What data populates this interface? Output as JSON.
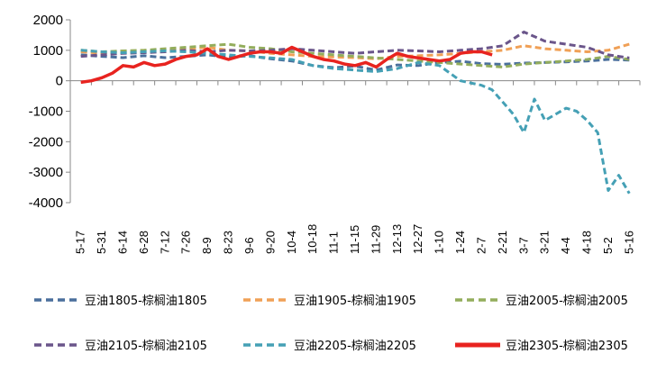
{
  "chart_data": {
    "type": "line",
    "ylim": [
      -4000,
      2000
    ],
    "y_ticks": [
      "2000",
      "1000",
      "0",
      "-1000",
      "-2000",
      "-3000",
      "-4000"
    ],
    "y_tick_values": [
      2000,
      1000,
      0,
      -1000,
      -2000,
      -3000,
      -4000
    ],
    "x_ticks": [
      "5-17",
      "5-31",
      "6-14",
      "6-28",
      "7-12",
      "7-26",
      "8-9",
      "8-23",
      "9-6",
      "9-20",
      "10-4",
      "10-18",
      "11-1",
      "11-15",
      "11-29",
      "12-13",
      "12-27",
      "1-10",
      "1-24",
      "2-7",
      "2-21",
      "3-7",
      "3-21",
      "4-4",
      "4-18",
      "5-2",
      "5-16"
    ],
    "grid": false,
    "legend_position": "bottom",
    "series": [
      {
        "name": "豆油1805-棕榈油1805",
        "color": "#4a6f9c",
        "dash": "dashed",
        "x": [
          0,
          1,
          2,
          3,
          4,
          5,
          6,
          7,
          8,
          9,
          10,
          11,
          12,
          13,
          14,
          15,
          16,
          17,
          18,
          19,
          20,
          21,
          22,
          23,
          24,
          25,
          26
        ],
        "values": [
          850,
          800,
          760,
          820,
          760,
          800,
          850,
          780,
          820,
          720,
          650,
          500,
          430,
          480,
          350,
          520,
          500,
          600,
          640,
          560,
          540,
          580,
          600,
          620,
          650,
          700,
          680
        ]
      },
      {
        "name": "豆油1905-棕榈油1905",
        "color": "#f0a056",
        "dash": "dashed",
        "x": [
          0,
          1,
          2,
          3,
          4,
          5,
          6,
          7,
          8,
          9,
          10,
          11,
          12,
          13,
          14,
          15,
          16,
          17,
          18,
          19,
          20,
          21,
          22,
          23,
          24,
          25,
          26
        ],
        "values": [
          950,
          900,
          980,
          950,
          1000,
          1050,
          1100,
          1000,
          980,
          900,
          850,
          800,
          780,
          760,
          720,
          800,
          820,
          850,
          900,
          950,
          1000,
          1150,
          1050,
          1000,
          950,
          1000,
          1200
        ]
      },
      {
        "name": "豆油2005-棕榈油2005",
        "color": "#93ad5c",
        "dash": "dashed",
        "x": [
          0,
          1,
          2,
          3,
          4,
          5,
          6,
          7,
          8,
          9,
          10,
          11,
          12,
          13,
          14,
          15,
          16,
          17,
          18,
          19,
          20,
          21,
          22,
          23,
          24,
          25,
          26
        ],
        "values": [
          1000,
          950,
          980,
          1000,
          1050,
          1100,
          1150,
          1200,
          1100,
          1050,
          950,
          900,
          850,
          800,
          750,
          700,
          650,
          600,
          550,
          500,
          450,
          550,
          600,
          650,
          700,
          800,
          700
        ]
      },
      {
        "name": "豆油2105-棕榈油2105",
        "color": "#6a558a",
        "dash": "dashed",
        "x": [
          0,
          1,
          2,
          3,
          4,
          5,
          6,
          7,
          8,
          9,
          10,
          11,
          12,
          13,
          14,
          15,
          16,
          17,
          18,
          19,
          20,
          21,
          22,
          23,
          24,
          25,
          26
        ],
        "values": [
          800,
          850,
          900,
          920,
          950,
          1000,
          950,
          1000,
          980,
          1000,
          1050,
          1000,
          950,
          900,
          950,
          1000,
          980,
          950,
          1000,
          1050,
          1150,
          1600,
          1300,
          1200,
          1100,
          850,
          750
        ]
      },
      {
        "name": "豆油2205-棕榈油2205",
        "color": "#45a0b5",
        "dash": "dashed",
        "x": [
          0,
          1,
          2,
          3,
          4,
          5,
          6,
          7,
          8,
          9,
          10,
          11,
          12,
          13,
          14,
          15,
          16,
          17,
          18,
          19,
          19.5,
          20,
          20.5,
          21,
          21.5,
          22,
          22.5,
          23,
          23.5,
          24,
          24.5,
          25,
          25.5,
          26
        ],
        "values": [
          1000,
          950,
          920,
          950,
          980,
          950,
          900,
          850,
          800,
          750,
          700,
          500,
          400,
          350,
          300,
          400,
          600,
          500,
          0,
          -150,
          -300,
          -700,
          -1100,
          -1700,
          -600,
          -1300,
          -1100,
          -900,
          -1000,
          -1300,
          -1700,
          -3600,
          -3100,
          -3700
        ]
      },
      {
        "name": "豆油2305-棕榈油2305",
        "color": "#e8231f",
        "dash": "solid",
        "x": [
          0,
          0.5,
          1,
          1.5,
          2,
          2.5,
          3,
          3.5,
          4,
          4.5,
          5,
          5.5,
          6,
          6.5,
          7,
          7.5,
          8,
          8.5,
          9,
          9.5,
          10,
          10.5,
          11,
          11.5,
          12,
          12.5,
          13,
          13.5,
          14,
          14.5,
          15,
          15.5,
          16,
          16.5,
          17,
          17.5,
          18,
          18.5,
          19,
          19.5
        ],
        "values": [
          -50,
          0,
          100,
          250,
          500,
          450,
          600,
          500,
          550,
          700,
          800,
          850,
          1050,
          800,
          700,
          800,
          900,
          950,
          950,
          900,
          1100,
          950,
          800,
          700,
          650,
          550,
          500,
          600,
          450,
          700,
          900,
          800,
          750,
          700,
          650,
          700,
          900,
          950,
          950,
          850
        ]
      }
    ]
  }
}
